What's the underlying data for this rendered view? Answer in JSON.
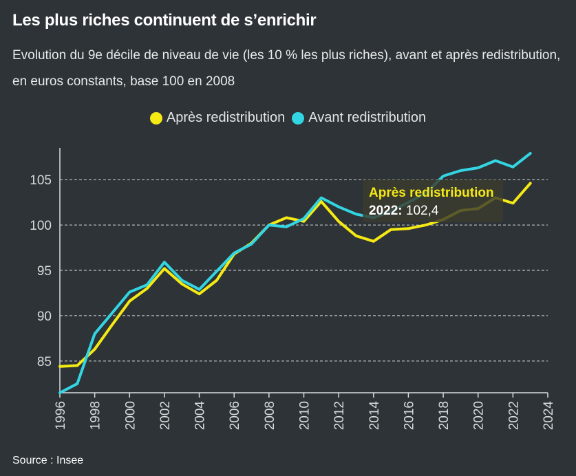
{
  "title": "Les plus riches continuent de s’enrichir",
  "subtitle": "Evolution du 9e décile de niveau de vie (les 10 % les plus riches), avant et après redistribution, en euros constants, base 100 en 2008",
  "source": "Source : Insee",
  "colors": {
    "apres": "#f5ea14",
    "avant": "#33d5e3",
    "background": "#2d3336"
  },
  "chart_data": {
    "type": "line",
    "xlim": [
      1996,
      2024
    ],
    "ylim": [
      81.5,
      108.5
    ],
    "x_ticks": [
      1996,
      1998,
      2000,
      2002,
      2004,
      2006,
      2008,
      2010,
      2012,
      2014,
      2016,
      2018,
      2020,
      2022,
      2024
    ],
    "y_ticks": [
      85,
      90,
      95,
      100,
      105
    ],
    "grid": "horizontal dashed",
    "legend_position": "top-center",
    "series": [
      {
        "name": "Après redistribution",
        "color": "#f5ea14",
        "x": [
          1996,
          1997,
          1998,
          1999,
          2000,
          2001,
          2002,
          2003,
          2004,
          2005,
          2006,
          2007,
          2008,
          2009,
          2010,
          2011,
          2012,
          2013,
          2014,
          2015,
          2016,
          2017,
          2018,
          2019,
          2020,
          2021,
          2022,
          2023
        ],
        "values": [
          84.4,
          84.5,
          86.3,
          89.0,
          91.6,
          93.0,
          95.2,
          93.5,
          92.4,
          93.9,
          96.8,
          98.0,
          100.0,
          100.8,
          100.4,
          102.6,
          100.4,
          98.8,
          98.2,
          99.5,
          99.6,
          100.0,
          100.6,
          101.6,
          101.8,
          103.0,
          102.4,
          104.6
        ]
      },
      {
        "name": "Avant redistribution",
        "color": "#33d5e3",
        "x": [
          1996,
          1997,
          1998,
          1999,
          2000,
          2001,
          2002,
          2003,
          2004,
          2005,
          2006,
          2007,
          2008,
          2009,
          2010,
          2011,
          2012,
          2013,
          2014,
          2015,
          2016,
          2017,
          2018,
          2019,
          2020,
          2021,
          2022,
          2023
        ],
        "values": [
          81.5,
          82.5,
          88.0,
          90.3,
          92.6,
          93.4,
          95.9,
          93.9,
          92.9,
          94.9,
          96.9,
          97.9,
          100.0,
          99.8,
          100.7,
          103.0,
          102.0,
          101.2,
          100.8,
          101.5,
          102.5,
          103.5,
          105.4,
          106.0,
          106.3,
          107.1,
          106.4,
          107.9
        ]
      }
    ],
    "tooltip": {
      "series": "Après redistribution",
      "year_label": "2022:",
      "value_label": "102,4",
      "year": 2022,
      "value": 102.4
    }
  }
}
